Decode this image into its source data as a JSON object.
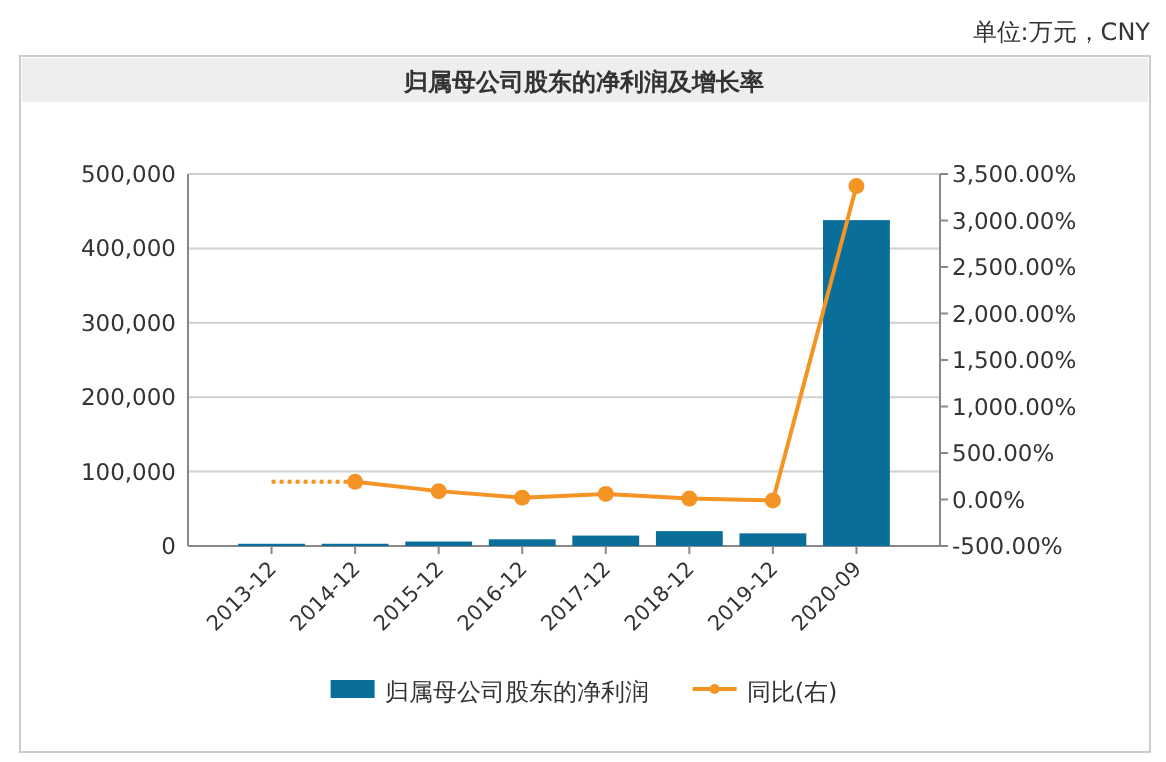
{
  "chart_data": {
    "type": "bar",
    "title": "归属母公司股东的净利润及增长率",
    "subtitle": "单位:万元，CNY",
    "categories": [
      "2013-12",
      "2014-12",
      "2015-12",
      "2016-12",
      "2017-12",
      "2018-12",
      "2019-12",
      "2020-09"
    ],
    "series": [
      {
        "name": "归属母公司股东的净利润",
        "color": "#0a6e9a",
        "values": [
          3000,
          3000,
          6000,
          9000,
          14000,
          20000,
          17000,
          438000
        ]
      },
      {
        "name": "同比(右)",
        "type": "line",
        "axis": "y2",
        "color": "#f39425",
        "marker": "circle",
        "values": [
          null,
          190,
          90,
          20,
          60,
          10,
          -10,
          3370
        ]
      },
      {
        "type": "line",
        "axis": "y2",
        "color": "#f39425",
        "marker": "none",
        "line_style": "dotted",
        "values": [
          190,
          190,
          null,
          null,
          null,
          null,
          null,
          null
        ]
      }
    ],
    "ylim": [
      0,
      500000
    ],
    "yticks": [
      {
        "value": 0,
        "label": "0"
      },
      {
        "value": 100000,
        "label": "100,000"
      },
      {
        "value": 200000,
        "label": "200,000"
      },
      {
        "value": 300000,
        "label": "300,000"
      },
      {
        "value": 400000,
        "label": "400,000"
      },
      {
        "value": 500000,
        "label": "500,000"
      }
    ],
    "y2lim": [
      -500,
      3500
    ],
    "y2ticks": [
      {
        "value": -500,
        "label": "-500.00%"
      },
      {
        "value": 0,
        "label": "0.00%"
      },
      {
        "value": 500,
        "label": "500.00%"
      },
      {
        "value": 1000,
        "label": "1,000.00%"
      },
      {
        "value": 1500,
        "label": "1,500.00%"
      },
      {
        "value": 2000,
        "label": "2,000.00%"
      },
      {
        "value": 2500,
        "label": "2,500.00%"
      },
      {
        "value": 3000,
        "label": "3,000.00%"
      },
      {
        "value": 3500,
        "label": "3,500.00%"
      }
    ],
    "grid": "y",
    "legend": "bottom"
  }
}
